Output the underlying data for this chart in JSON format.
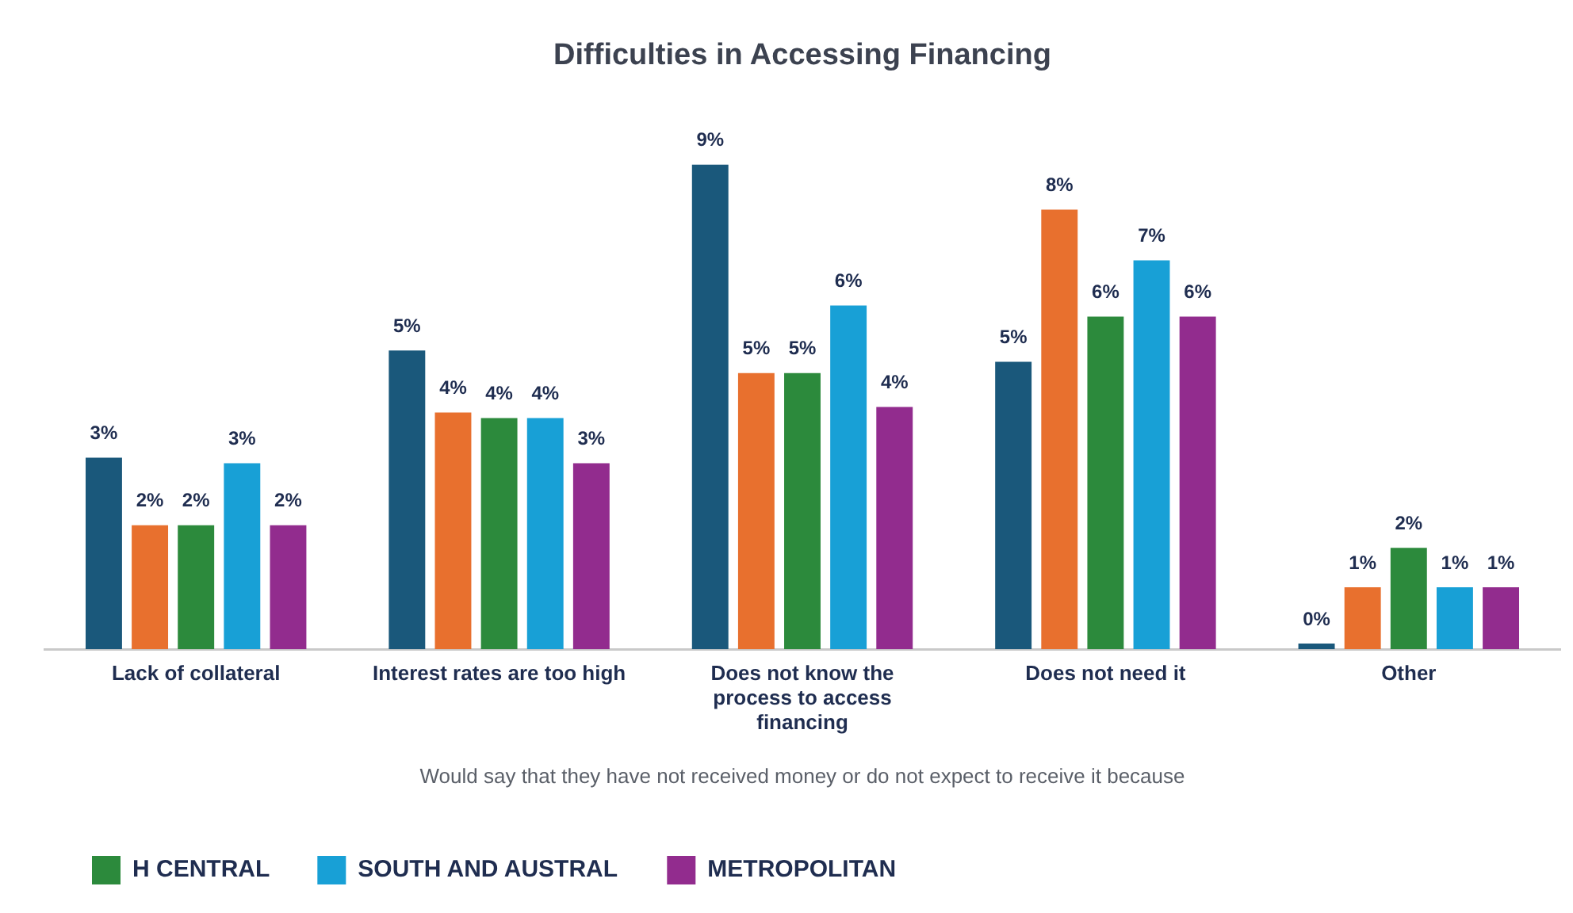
{
  "chart_data": {
    "type": "bar",
    "title": "Difficulties in Accessing Financing",
    "xlabel": "Would say that they have not received money or do not expect to receive it because",
    "categories": [
      "Lack of collateral",
      "Interest rates are too high",
      "Does not know the process to access financing",
      "Does not need it",
      "Other"
    ],
    "series": [
      {
        "color": "#1a587b",
        "values": [
          3.4,
          5.3,
          8.6,
          5.1,
          0.1
        ],
        "value_labels": [
          "3%",
          "5%",
          "9%",
          "5%",
          "0%"
        ]
      },
      {
        "color": "#e8702e",
        "values": [
          2.2,
          4.2,
          4.9,
          7.8,
          1.1
        ],
        "value_labels": [
          "2%",
          "4%",
          "5%",
          "8%",
          "1%"
        ]
      },
      {
        "name": "H CENTRAL",
        "color": "#2c8a3c",
        "values": [
          2.2,
          4.1,
          4.9,
          5.9,
          1.8
        ],
        "value_labels": [
          "2%",
          "4%",
          "5%",
          "6%",
          "2%"
        ]
      },
      {
        "name": "SOUTH AND AUSTRAL",
        "color": "#18a0d6",
        "values": [
          3.3,
          4.1,
          6.1,
          6.9,
          1.1
        ],
        "value_labels": [
          "3%",
          "4%",
          "6%",
          "7%",
          "1%"
        ]
      },
      {
        "name": "METROPOLITAN",
        "color": "#922c8e",
        "values": [
          2.2,
          3.3,
          4.3,
          5.9,
          1.1
        ],
        "value_labels": [
          "2%",
          "3%",
          "4%",
          "6%",
          "1%"
        ]
      }
    ],
    "legend": "bottom left",
    "tick_labels": "x",
    "grid": false
  }
}
